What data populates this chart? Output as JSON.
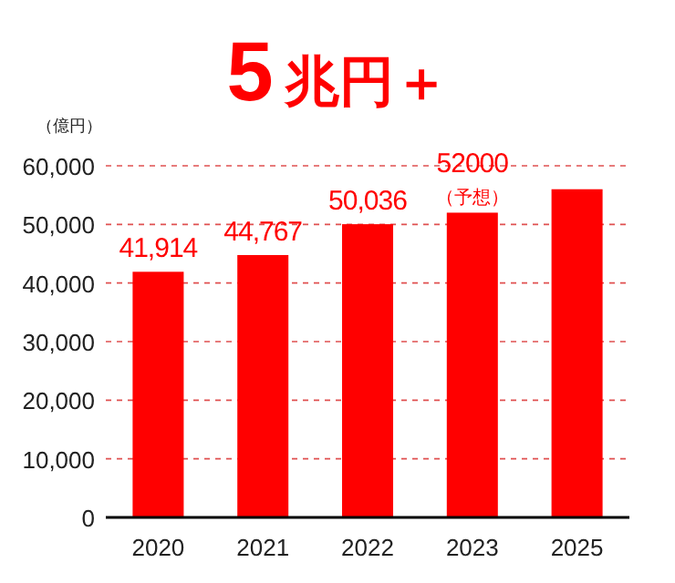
{
  "chart_data": {
    "type": "bar",
    "title": "5兆円＋",
    "ylabel": "（億円）",
    "categories": [
      "2020",
      "2021",
      "2022",
      "2023",
      "2025"
    ],
    "values": [
      41914,
      44767,
      50036,
      52000,
      56000
    ],
    "value_labels": [
      "41,914",
      "44,767",
      "50,036",
      "52000",
      null
    ],
    "annotations": [
      {
        "text": "（予想）",
        "x": "2023",
        "y": 52000
      }
    ],
    "color": "#ff0000",
    "ylim": [
      0,
      60000
    ],
    "yticks": [
      {
        "value": 0,
        "label": "0"
      },
      {
        "value": 10000,
        "label": "10,000"
      },
      {
        "value": 20000,
        "label": "20,000"
      },
      {
        "value": 30000,
        "label": "30,000"
      },
      {
        "value": 40000,
        "label": "40,000"
      },
      {
        "value": 50000,
        "label": "50,000"
      },
      {
        "value": 60000,
        "label": "60,000"
      }
    ],
    "grid": "y"
  }
}
